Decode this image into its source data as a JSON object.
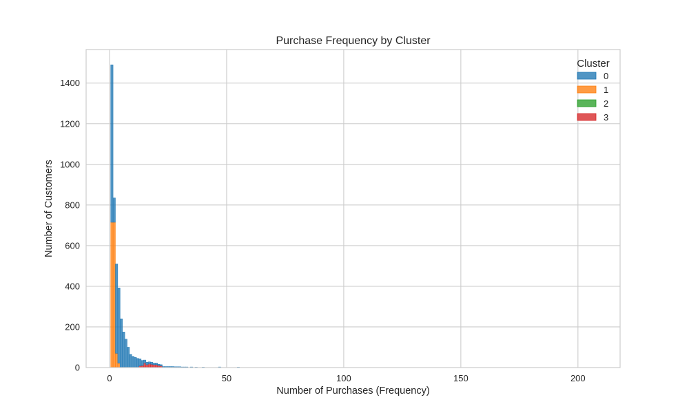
{
  "chart_data": {
    "type": "bar",
    "subtype": "stacked-histogram",
    "title": "Purchase Frequency by Cluster",
    "xlabel": "Number of Purchases (Frequency)",
    "ylabel": "Number of Customers",
    "xlim": [
      -10,
      218
    ],
    "ylim": [
      0,
      1565
    ],
    "xticks": [
      0,
      50,
      100,
      150,
      200
    ],
    "yticks": [
      0,
      200,
      400,
      600,
      800,
      1000,
      1200,
      1400
    ],
    "grid": true,
    "legend": {
      "title": "Cluster",
      "placement": "top-right",
      "entries": [
        "0",
        "1",
        "2",
        "3"
      ]
    },
    "colors": {
      "0": "#1f77b4",
      "1": "#ff7f0e",
      "2": "#2ca02c",
      "3": "#d62728"
    },
    "bin_width": 1,
    "series": [
      {
        "name": "0",
        "x": [
          1,
          2,
          3,
          4,
          5,
          6,
          7,
          8,
          9,
          10,
          11,
          12,
          13,
          14,
          15,
          16,
          17,
          18,
          19,
          20,
          21,
          22,
          23,
          24,
          25,
          26,
          27,
          28,
          29,
          30,
          31,
          32,
          33,
          35,
          37,
          40,
          47,
          55
        ],
        "values": [
          775,
          120,
          440,
          370,
          240,
          175,
          140,
          100,
          65,
          55,
          50,
          45,
          35,
          25,
          15,
          12,
          10,
          10,
          8,
          8,
          6,
          6,
          5,
          5,
          5,
          5,
          5,
          4,
          4,
          4,
          3,
          3,
          3,
          3,
          2,
          2,
          3,
          2
        ]
      },
      {
        "name": "1",
        "x": [
          1,
          2,
          3,
          4
        ],
        "values": [
          715,
          715,
          70,
          22
        ]
      },
      {
        "name": "2",
        "x": [],
        "values": []
      },
      {
        "name": "3",
        "x": [
          13,
          14,
          15,
          16,
          17,
          18,
          19,
          20,
          21,
          22
        ],
        "values": [
          8,
          10,
          22,
          14,
          18,
          16,
          14,
          14,
          10,
          8
        ]
      }
    ]
  }
}
